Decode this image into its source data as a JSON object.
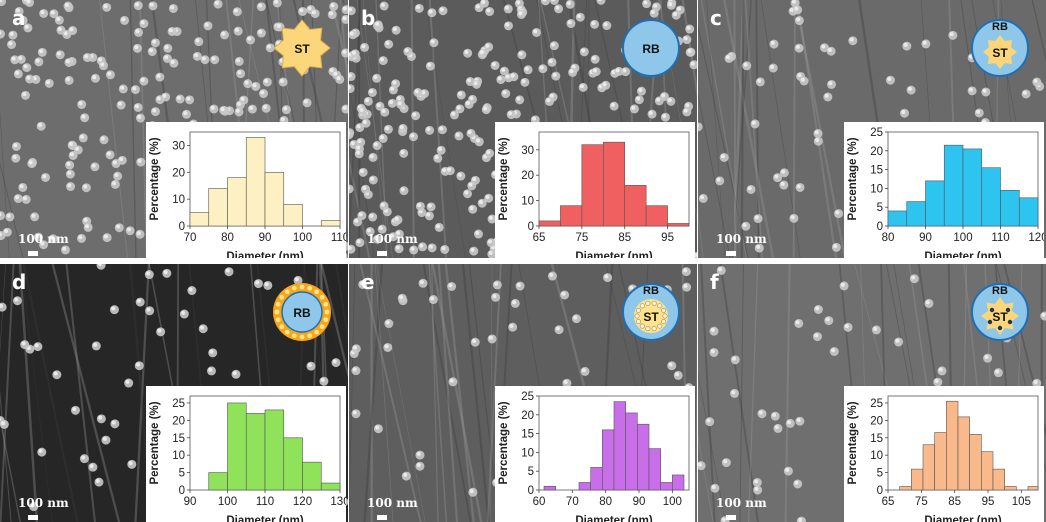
{
  "figure": {
    "scale_label": "100 nm",
    "panels": [
      {
        "label": "a",
        "icon": "star-particle-icon",
        "icon_text_top": "",
        "icon_text": "ST",
        "bar_color": "#fdf0c3"
      },
      {
        "label": "b",
        "icon": "round-particle-icon",
        "icon_text_top": "",
        "icon_text": "RB",
        "bar_color": "#f06060"
      },
      {
        "label": "c",
        "icon": "star-in-round-icon",
        "icon_text_top": "RB",
        "icon_text": "ST",
        "bar_color": "#2ec4f0"
      },
      {
        "label": "d",
        "icon": "round-with-corona-icon",
        "icon_text_top": "",
        "icon_text": "RB",
        "bar_color": "#8fe25a"
      },
      {
        "label": "e",
        "icon": "dotted-round-particle-icon",
        "icon_text_top": "RB",
        "icon_text": "ST",
        "bar_color": "#c86ee8"
      },
      {
        "label": "f",
        "icon": "dotted-star-in-round-icon",
        "icon_text_top": "RB",
        "icon_text": "ST",
        "bar_color": "#f9b98a"
      }
    ]
  },
  "chart_data": [
    {
      "type": "bar",
      "xlabel": "Diameter (nm)",
      "ylabel": "Percentage (%)",
      "xlim": [
        70,
        110
      ],
      "ylim": [
        0,
        35
      ],
      "xticks": [
        70,
        80,
        90,
        100,
        110
      ],
      "yticks": [
        0,
        10,
        20,
        30
      ],
      "bin_width": 5,
      "bin_starts": [
        70,
        75,
        80,
        85,
        90,
        95,
        100,
        105
      ],
      "values": [
        5,
        14,
        18,
        33,
        20,
        8,
        0,
        2
      ]
    },
    {
      "type": "bar",
      "xlabel": "Diameter (nm)",
      "ylabel": "Percentage (%)",
      "xlim": [
        65,
        100
      ],
      "ylim": [
        0,
        37
      ],
      "xticks": [
        65,
        75,
        85,
        95
      ],
      "yticks": [
        0,
        10,
        20,
        30
      ],
      "bin_width": 5,
      "bin_starts": [
        65,
        70,
        75,
        80,
        85,
        90,
        95
      ],
      "values": [
        2,
        8,
        32,
        33,
        16,
        8,
        1
      ]
    },
    {
      "type": "bar",
      "xlabel": "Diameter (nm)",
      "ylabel": "Percentage (%)",
      "xlim": [
        80,
        120
      ],
      "ylim": [
        0,
        25
      ],
      "xticks": [
        80,
        90,
        100,
        110,
        120
      ],
      "yticks": [
        0,
        5,
        10,
        15,
        20,
        25
      ],
      "bin_width": 5,
      "bin_starts": [
        80,
        85,
        90,
        95,
        100,
        105,
        110,
        115
      ],
      "values": [
        4,
        6.5,
        12,
        21.5,
        20.5,
        15.5,
        9.5,
        7.5
      ]
    },
    {
      "type": "bar",
      "xlabel": "Diameter (nm)",
      "ylabel": "Percentage (%)",
      "xlim": [
        90,
        130
      ],
      "ylim": [
        0,
        27
      ],
      "xticks": [
        90,
        100,
        110,
        120,
        130
      ],
      "yticks": [
        0,
        5,
        10,
        15,
        20,
        25
      ],
      "bin_width": 5,
      "bin_starts": [
        95,
        100,
        105,
        110,
        115,
        120,
        125
      ],
      "values": [
        5,
        25,
        22,
        23,
        15,
        8,
        2
      ]
    },
    {
      "type": "bar",
      "xlabel": "Diameter (nm)",
      "ylabel": "Percentage (%)",
      "xlim": [
        60,
        105
      ],
      "ylim": [
        0,
        25
      ],
      "xticks": [
        60,
        70,
        80,
        90,
        100
      ],
      "yticks": [
        0,
        5,
        10,
        15,
        20,
        25
      ],
      "bin_width": 3.5,
      "bin_starts": [
        61.5,
        65,
        68.5,
        72,
        75.5,
        79,
        82.5,
        86,
        89.5,
        93,
        96.5,
        100,
        103.5
      ],
      "values": [
        1,
        0,
        0,
        2,
        6,
        16,
        23.5,
        20.5,
        17.5,
        11,
        2,
        4,
        0
      ]
    },
    {
      "type": "bar",
      "xlabel": "Diameter (nm)",
      "ylabel": "Percentage (%)",
      "xlim": [
        65,
        110
      ],
      "ylim": [
        0,
        27
      ],
      "xticks": [
        65,
        75,
        85,
        95,
        105
      ],
      "yticks": [
        0,
        5,
        10,
        15,
        20,
        25
      ],
      "bin_width": 3.5,
      "bin_starts": [
        65,
        68.5,
        72,
        75.5,
        79,
        82.5,
        86,
        89.5,
        93,
        96.5,
        100,
        103.5,
        107
      ],
      "values": [
        0,
        1,
        6,
        13,
        16.5,
        25.5,
        21,
        16,
        11,
        6,
        1,
        0,
        1
      ]
    }
  ]
}
